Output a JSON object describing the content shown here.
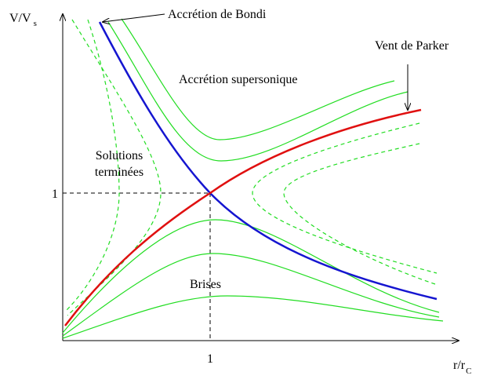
{
  "axes": {
    "y_label": "V/V",
    "y_label_sub": "s",
    "x_label": "r/r",
    "x_label_sub": "C",
    "y_tick": "1",
    "x_tick": "1"
  },
  "labels": {
    "bondi": "Accrétion de Bondi",
    "parker": "Vent de Parker",
    "supersonic": "Accrétion supersonique",
    "terminated_1": "Solutions",
    "terminated_2": "terminées",
    "breezes": "Brises"
  }
}
